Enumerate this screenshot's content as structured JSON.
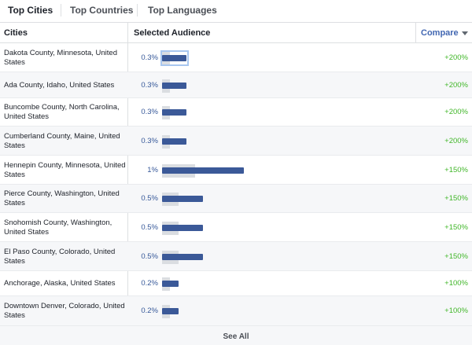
{
  "tabs": [
    {
      "label": "Top Cities",
      "active": true
    },
    {
      "label": "Top Countries",
      "active": false
    },
    {
      "label": "Top Languages",
      "active": false
    }
  ],
  "table": {
    "headers": {
      "cities": "Cities",
      "audience": "Selected Audience",
      "compare": "Compare"
    },
    "rows": [
      {
        "city": "Dakota County, Minnesota, United States",
        "audience_pct": "0.3%",
        "audience_value": 0.3,
        "baseline_value": 0.1,
        "compare": "+200%"
      },
      {
        "city": "Ada County, Idaho, United States",
        "audience_pct": "0.3%",
        "audience_value": 0.3,
        "baseline_value": 0.1,
        "compare": "+200%"
      },
      {
        "city": "Buncombe County, North Carolina, United States",
        "audience_pct": "0.3%",
        "audience_value": 0.3,
        "baseline_value": 0.1,
        "compare": "+200%"
      },
      {
        "city": "Cumberland County, Maine, United States",
        "audience_pct": "0.3%",
        "audience_value": 0.3,
        "baseline_value": 0.1,
        "compare": "+200%"
      },
      {
        "city": "Hennepin County, Minnesota, United States",
        "audience_pct": "1%",
        "audience_value": 1.0,
        "baseline_value": 0.4,
        "compare": "+150%"
      },
      {
        "city": "Pierce County, Washington, United States",
        "audience_pct": "0.5%",
        "audience_value": 0.5,
        "baseline_value": 0.2,
        "compare": "+150%"
      },
      {
        "city": "Snohomish County, Washington, United States",
        "audience_pct": "0.5%",
        "audience_value": 0.5,
        "baseline_value": 0.2,
        "compare": "+150%"
      },
      {
        "city": "El Paso County, Colorado, United States",
        "audience_pct": "0.5%",
        "audience_value": 0.5,
        "baseline_value": 0.2,
        "compare": "+150%"
      },
      {
        "city": "Anchorage, Alaska, United States",
        "audience_pct": "0.2%",
        "audience_value": 0.2,
        "baseline_value": 0.1,
        "compare": "+100%"
      },
      {
        "city": "Downtown Denver, Colorado, United States",
        "audience_pct": "0.2%",
        "audience_value": 0.2,
        "baseline_value": 0.1,
        "compare": "+100%"
      }
    ]
  },
  "footer": {
    "see_all": "See All"
  },
  "colors": {
    "bar_audience": "#3b5998",
    "bar_baseline": "#dadde1",
    "compare_positive": "#42b72a",
    "link": "#4267b2"
  }
}
